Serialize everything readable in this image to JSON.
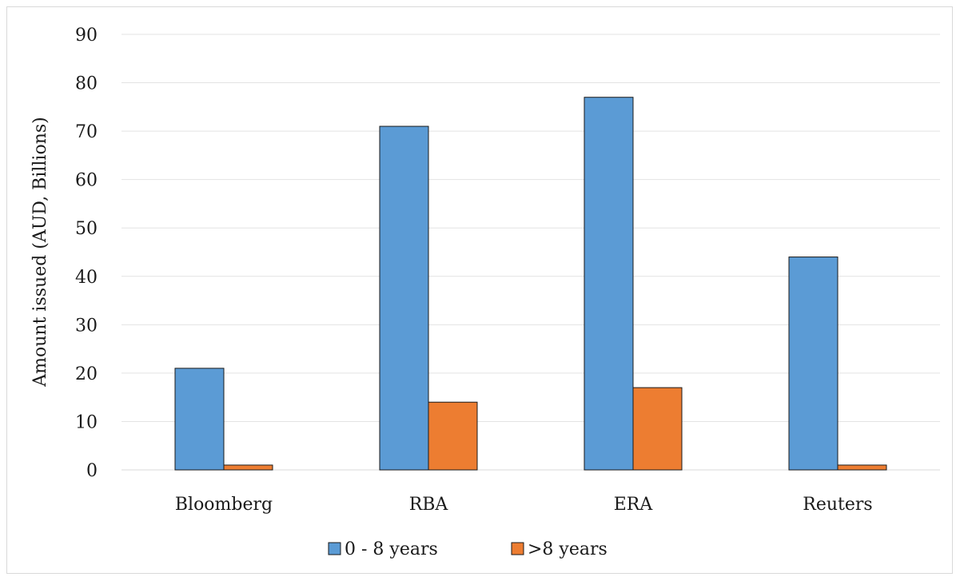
{
  "chart_data": {
    "type": "bar",
    "title": "",
    "xlabel": "",
    "ylabel": "Amount issued (AUD, Billions)",
    "categories": [
      "Bloomberg",
      "RBA",
      "ERA",
      "Reuters"
    ],
    "series": [
      {
        "name": "0 - 8 years",
        "values": [
          21,
          71,
          77,
          44
        ],
        "color": "#5b9bd5"
      },
      {
        "name": ">8 years",
        "values": [
          1,
          14,
          17,
          1
        ],
        "color": "#ed7d31"
      }
    ],
    "ylim": [
      0,
      90
    ],
    "yticks": [
      "0",
      "10",
      "20",
      "30",
      "40",
      "50",
      "60",
      "70",
      "80",
      "90"
    ],
    "grid": true,
    "legend_position": "bottom"
  }
}
